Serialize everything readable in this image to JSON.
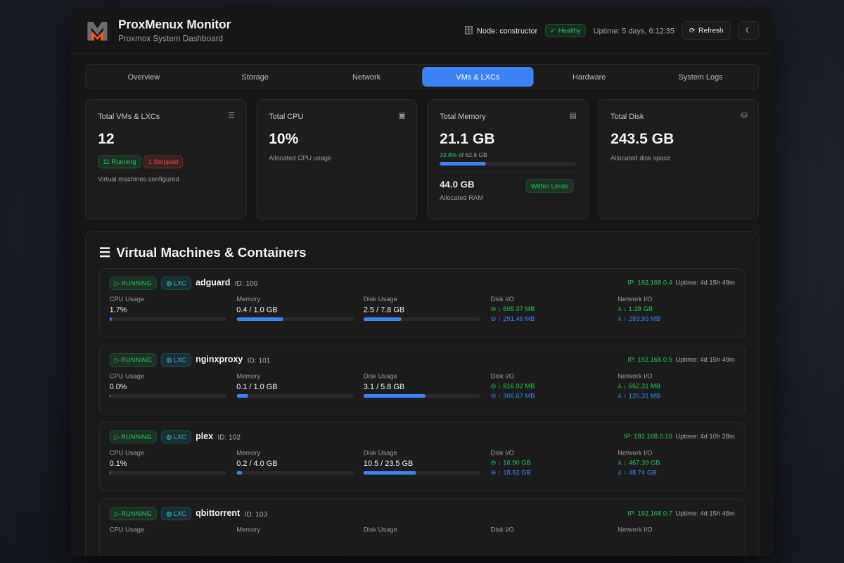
{
  "header": {
    "title": "ProxMenux Monitor",
    "subtitle": "Proxmox System Dashboard",
    "node": "Node: constructor",
    "health": "Healthy",
    "uptime": "Uptime: 5 days, 6:12:35",
    "refresh": "Refresh"
  },
  "tabs": [
    {
      "label": "Overview"
    },
    {
      "label": "Storage"
    },
    {
      "label": "Network"
    },
    {
      "label": "VMs & LXCs",
      "active": true
    },
    {
      "label": "Hardware"
    },
    {
      "label": "System Logs"
    }
  ],
  "stats": {
    "vms": {
      "label": "Total VMs & LXCs",
      "value": "12",
      "running": "11 Running",
      "stopped": "1 Stopped",
      "sub": "Virtual machines configured"
    },
    "cpu": {
      "label": "Total CPU",
      "value": "10%",
      "sub": "Allocated CPU usage"
    },
    "memory": {
      "label": "Total Memory",
      "value": "21.1 GB",
      "pct": "33.8%",
      "of": " of 62.6 GB",
      "usage_percent": 33.8,
      "allocated": "44.0 GB",
      "allocated_label": "Allocated RAM",
      "status": "Within Limits"
    },
    "disk": {
      "label": "Total Disk",
      "value": "243.5 GB",
      "sub": "Allocated disk space"
    }
  },
  "vm_section": {
    "title": "Virtual Machines & Containers",
    "labels": {
      "cpu": "CPU Usage",
      "memory": "Memory",
      "disk": "Disk Usage",
      "diskio": "Disk I/O",
      "netio": "Network I/O",
      "ip_prefix": "IP: ",
      "uptime_prefix": "Uptime: "
    },
    "items": [
      {
        "status": "RUNNING",
        "type": "LXC",
        "name": "adguard",
        "id": "ID: 100",
        "ip": "IP: 192.168.0.4",
        "uptime": "Uptime: 4d 15h 49m",
        "cpu": "1.7%",
        "cpu_pct": 1.7,
        "mem": "0.4 / 1.0 GB",
        "mem_pct": 40,
        "disk": "2.5 / 7.8 GB",
        "disk_pct": 32,
        "disk_read": "↓ 605.37 MB",
        "disk_write": "↑ 291.46 MB",
        "net_in": "↓ 1.28 GB",
        "net_out": "↑ 283.93 MB"
      },
      {
        "status": "RUNNING",
        "type": "LXC",
        "name": "nginxproxy",
        "id": "ID: 101",
        "ip": "IP: 192.168.0.5",
        "uptime": "Uptime: 4d 15h 49m",
        "cpu": "0.0%",
        "cpu_pct": 0,
        "mem": "0.1 / 1.0 GB",
        "mem_pct": 10,
        "disk": "3.1 / 5.8 GB",
        "disk_pct": 53,
        "disk_read": "↓ 816.92 MB",
        "disk_write": "↑ 306.67 MB",
        "net_in": "↓ 662.31 MB",
        "net_out": "↑ 120.31 MB"
      },
      {
        "status": "RUNNING",
        "type": "LXC",
        "name": "plex",
        "id": "ID: 102",
        "ip": "IP: 192.168.0.16",
        "uptime": "Uptime: 4d 10h 28m",
        "cpu": "0.1%",
        "cpu_pct": 0.1,
        "mem": "0.2 / 4.0 GB",
        "mem_pct": 5,
        "disk": "10.5 / 23.5 GB",
        "disk_pct": 45,
        "disk_read": "↓ 16.90 GB",
        "disk_write": "↑ 18.52 GB",
        "net_in": "↓ 467.39 GB",
        "net_out": "↑ 48.74 GB"
      },
      {
        "status": "RUNNING",
        "type": "LXC",
        "name": "qbittorrent",
        "id": "ID: 103",
        "ip": "IP: 192.168.0.7",
        "uptime": "Uptime: 4d 15h 48m"
      }
    ]
  },
  "colors": {
    "accent": "#3b82f6",
    "success": "#22c55e",
    "danger": "#ef4444",
    "lxc": "#22b8cf",
    "logo_orange": "#f05a22"
  }
}
